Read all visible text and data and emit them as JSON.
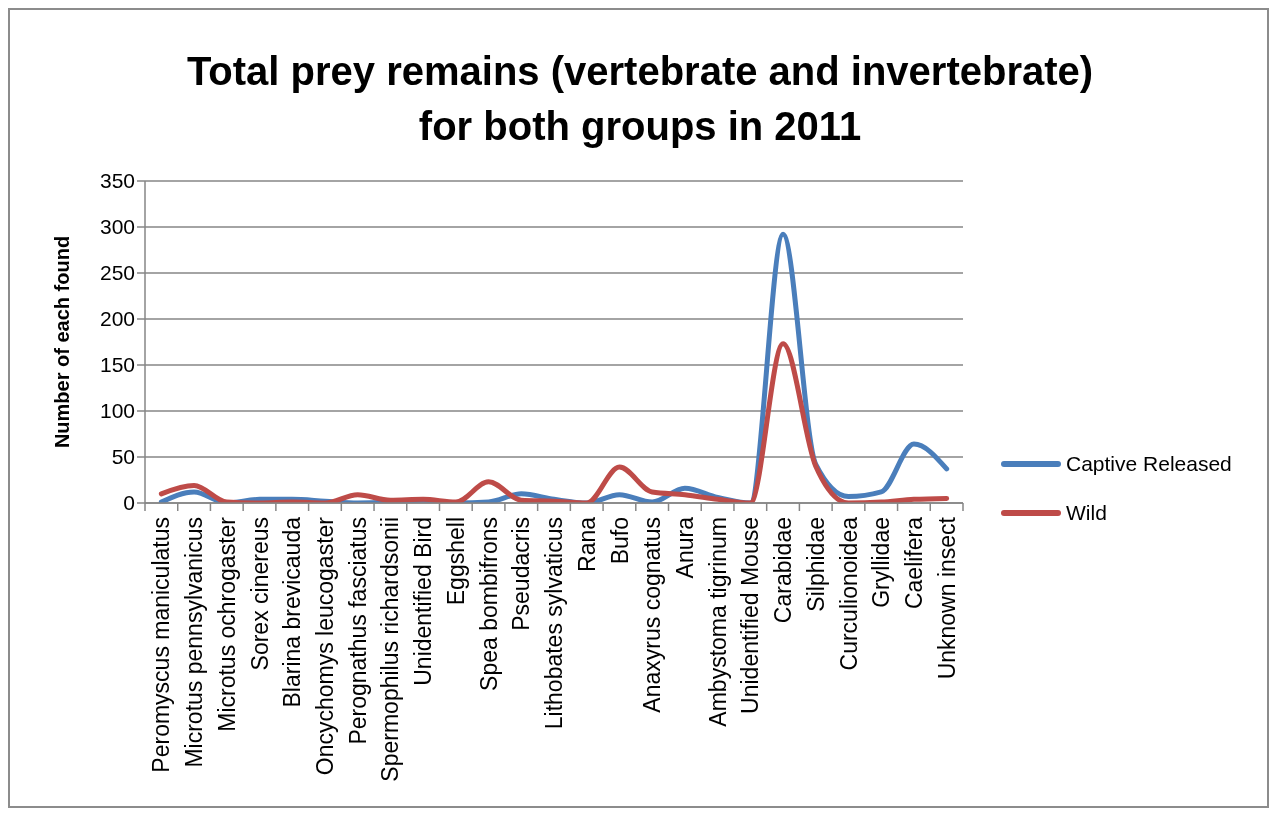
{
  "chart_data": {
    "type": "line",
    "title": "Total prey remains (vertebrate and invertebrate) for both groups in 2011",
    "ylabel": "Number of each found",
    "categories": [
      "Peromyscus maniculatus",
      "Microtus pennsylvanicus",
      "Microtus ochrogaster",
      "Sorex cinereus",
      "Blarina brevicauda",
      "Oncychomys leucogaster",
      "Perognathus fasciatus",
      "Spermophilus richardsonii",
      "Unidentified Bird",
      "Eggshell",
      "Spea bombifrons",
      "Pseudacris",
      "Lithobates sylvaticus",
      "Rana",
      "Bufo",
      "Anaxyrus cognatus",
      "Anura",
      "Ambystoma tigrinum",
      "Unidentified Mouse",
      "Carabidae",
      "Silphidae",
      "Curculionoidea",
      "Gryllidae",
      "Caelifera",
      "Unknown insect"
    ],
    "series": [
      {
        "name": "Captive Released",
        "color": "#4a7ebb",
        "values": [
          1,
          12,
          0,
          4,
          4,
          2,
          0,
          1,
          3,
          0,
          1,
          10,
          4,
          0,
          9,
          1,
          16,
          6,
          0,
          292,
          42,
          7,
          12,
          64,
          37
        ]
      },
      {
        "name": "Wild",
        "color": "#be4b48",
        "values": [
          10,
          19,
          1,
          0,
          1,
          0,
          9,
          3,
          4,
          1,
          23,
          3,
          2,
          0,
          39,
          12,
          9,
          4,
          0,
          173,
          40,
          0,
          1,
          4,
          5
        ]
      }
    ],
    "ylim": [
      0,
      350
    ],
    "yticks": [
      0,
      50,
      100,
      150,
      200,
      250,
      300,
      350
    ],
    "grid": "y",
    "legend": "right",
    "marker": "none",
    "line_style": "solid"
  }
}
